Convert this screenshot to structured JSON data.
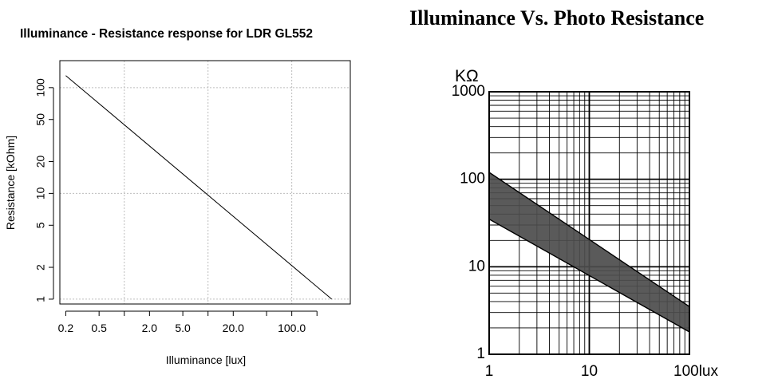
{
  "chart_data": [
    {
      "type": "line",
      "title": "Illuminance - Resistance response for LDR GL552",
      "xlabel": "Illuminance [lux]",
      "ylabel": "Resistance [kOhm]",
      "x_scale": "log",
      "y_scale": "log",
      "xlim": [
        0.17,
        500
      ],
      "ylim": [
        0.9,
        180
      ],
      "x_ticks": [
        0.2,
        0.5,
        2.0,
        5.0,
        20.0,
        100.0
      ],
      "x_tick_labels": [
        "0.2",
        "0.5",
        "2.0",
        "5.0",
        "20.0",
        "100.0"
      ],
      "x_minor_ticks": [
        1.0,
        10.0,
        50.0,
        200.0
      ],
      "y_ticks": [
        1,
        2,
        5,
        10,
        20,
        50,
        100
      ],
      "y_tick_labels": [
        "1",
        "2",
        "5",
        "10",
        "20",
        "50",
        "100"
      ],
      "grid": true,
      "grid_x": [
        1,
        10,
        100
      ],
      "grid_y": [
        1,
        10,
        100
      ],
      "series": [
        {
          "x": [
            0.2,
            300
          ],
          "y": [
            130,
            1.0
          ]
        }
      ]
    },
    {
      "type": "area",
      "title": "Illuminance Vs. Photo Resistance",
      "unit_label": "KΩ",
      "x_scale": "log",
      "y_scale": "log",
      "xlim": [
        1,
        100
      ],
      "ylim": [
        1,
        1000
      ],
      "x_tick_labels": [
        "1",
        "10",
        "100lux"
      ],
      "y_tick_labels": [
        "1",
        "10",
        "100",
        "1000"
      ],
      "grid": true,
      "band": {
        "x": [
          1,
          100
        ],
        "upper": [
          120,
          3.5
        ],
        "lower": [
          35,
          1.8
        ]
      }
    }
  ]
}
